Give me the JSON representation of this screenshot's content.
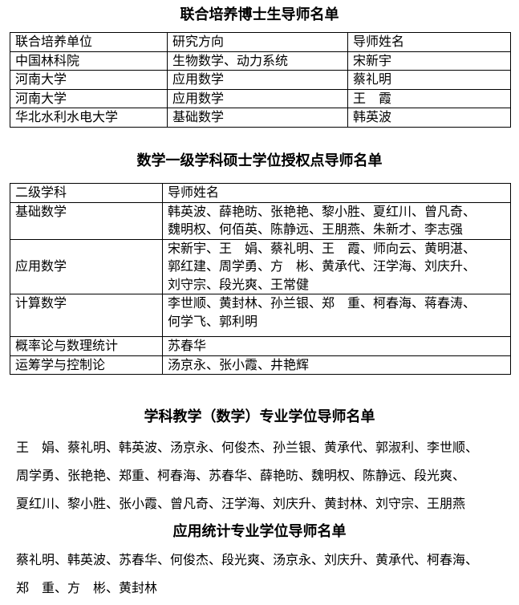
{
  "section1": {
    "title": "联合培养博士生导师名单",
    "headers": [
      "联合培养单位",
      "研究方向",
      "导师姓名"
    ],
    "rows": [
      [
        "中国林科院",
        "生物数学、动力系统",
        "宋新宇"
      ],
      [
        "河南大学",
        "应用数学",
        "蔡礼明"
      ],
      [
        "河南大学",
        "应用数学",
        "王　霞"
      ],
      [
        "华北水利水电大学",
        "基础数学",
        "韩英波"
      ]
    ]
  },
  "section2": {
    "title": "数学一级学科硕士学位授权点导师名单",
    "headers": [
      "二级学科",
      "导师姓名"
    ],
    "rows": [
      {
        "subject": "基础数学",
        "names": [
          "韩英波、薛艳昉、张艳艳、黎小胜、夏红川、曾凡奇、",
          "魏明权、何佰英、陈静远、王朋燕、朱新才、李志强"
        ]
      },
      {
        "subject": "应用数学",
        "names": [
          "宋新宇、王　娟、蔡礼明、王　霞、师向云、黄明湛、",
          "郭红建、周学勇、方　彬、黄承代、汪学海、刘庆升、",
          "刘守宗、段光爽、王常健"
        ]
      },
      {
        "subject": "计算数学",
        "names": [
          "李世顺、黄封林、孙兰银、郑　重、柯春海、蒋春涛、",
          "何学飞、郭利明"
        ]
      },
      {
        "subject": "概率论与数理统计",
        "names": [
          "苏春华"
        ]
      },
      {
        "subject": "运筹学与控制论",
        "names": [
          "汤京永、张小霞、井艳辉"
        ]
      }
    ]
  },
  "section3": {
    "title": "学科教学（数学）专业学位导师名单",
    "lines": [
      "王　娟、蔡礼明、韩英波、汤京永、何俊杰、孙兰银、黄承代、郭淑利、李世顺、",
      "周学勇、张艳艳、郑重、柯春海、苏春华、薛艳昉、魏明权、陈静远、段光爽、",
      "夏红川、黎小胜、张小霞、曾凡奇、汪学海、刘庆升、黄封林、刘守宗、王朋燕"
    ]
  },
  "section4": {
    "title": "应用统计专业学位导师名单",
    "lines": [
      "蔡礼明、韩英波、苏春华、何俊杰、段光爽、汤京永、刘庆升、黄承代、柯春海、",
      "郑　重、方　彬、黄封林"
    ]
  }
}
